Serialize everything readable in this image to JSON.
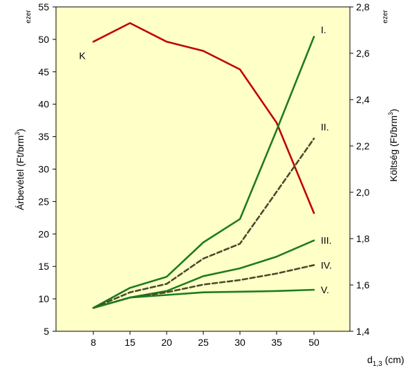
{
  "chart_data": {
    "type": "line",
    "x": [
      "8",
      "15",
      "20",
      "25",
      "30",
      "35",
      "50"
    ],
    "xlabel_main": "d",
    "xlabel_sub": "1,3",
    "xlabel_unit": " (cm)",
    "ylabel_left_main": "Árbevétel (Ft/brm",
    "ylabel_left_sup": "3",
    "ylabel_left_end": ")",
    "ylabel_left_scale": "ezer",
    "ylabel_right_main": "Költség (Ft/brm",
    "ylabel_right_sup": "3",
    "ylabel_right_end": ")",
    "ylabel_right_scale": "ezer",
    "ylim_left": [
      5,
      55
    ],
    "ylim_right": [
      1.4,
      2.8
    ],
    "yticks_left": [
      "5",
      "10",
      "15",
      "20",
      "25",
      "30",
      "35",
      "40",
      "45",
      "50",
      "55"
    ],
    "yticks_right": [
      "1,4",
      "1,6",
      "1,8",
      "2,0",
      "2,2",
      "2,4",
      "2,6",
      "2,8"
    ],
    "grid": false,
    "background_color": "#FFFFC8",
    "series": [
      {
        "name": "K",
        "axis": "right",
        "style": "solid",
        "color": "#C00000",
        "values": [
          2.65,
          2.73,
          2.65,
          2.61,
          2.53,
          2.3,
          1.91
        ]
      },
      {
        "name": "I.",
        "axis": "left",
        "style": "solid",
        "color": "#1E7B1E",
        "values": [
          8.6,
          11.7,
          13.4,
          18.7,
          22.3,
          36.0,
          50.4
        ]
      },
      {
        "name": "II.",
        "axis": "left",
        "style": "dashed",
        "color": "#4A4A2A",
        "values": [
          8.6,
          11.0,
          12.3,
          16.2,
          18.5,
          26.5,
          34.7
        ]
      },
      {
        "name": "III.",
        "axis": "left",
        "style": "solid",
        "color": "#1E7B1E",
        "values": [
          8.6,
          10.2,
          11.2,
          13.5,
          14.7,
          16.5,
          19.0
        ]
      },
      {
        "name": "IV.",
        "axis": "left",
        "style": "dashed",
        "color": "#4A4A2A",
        "values": [
          8.6,
          10.2,
          11.0,
          12.2,
          12.9,
          13.9,
          15.2
        ]
      },
      {
        "name": "V.",
        "axis": "left",
        "style": "solid",
        "color": "#1E7B1E",
        "values": [
          8.6,
          10.2,
          10.6,
          11.0,
          11.1,
          11.2,
          11.4
        ]
      }
    ]
  }
}
